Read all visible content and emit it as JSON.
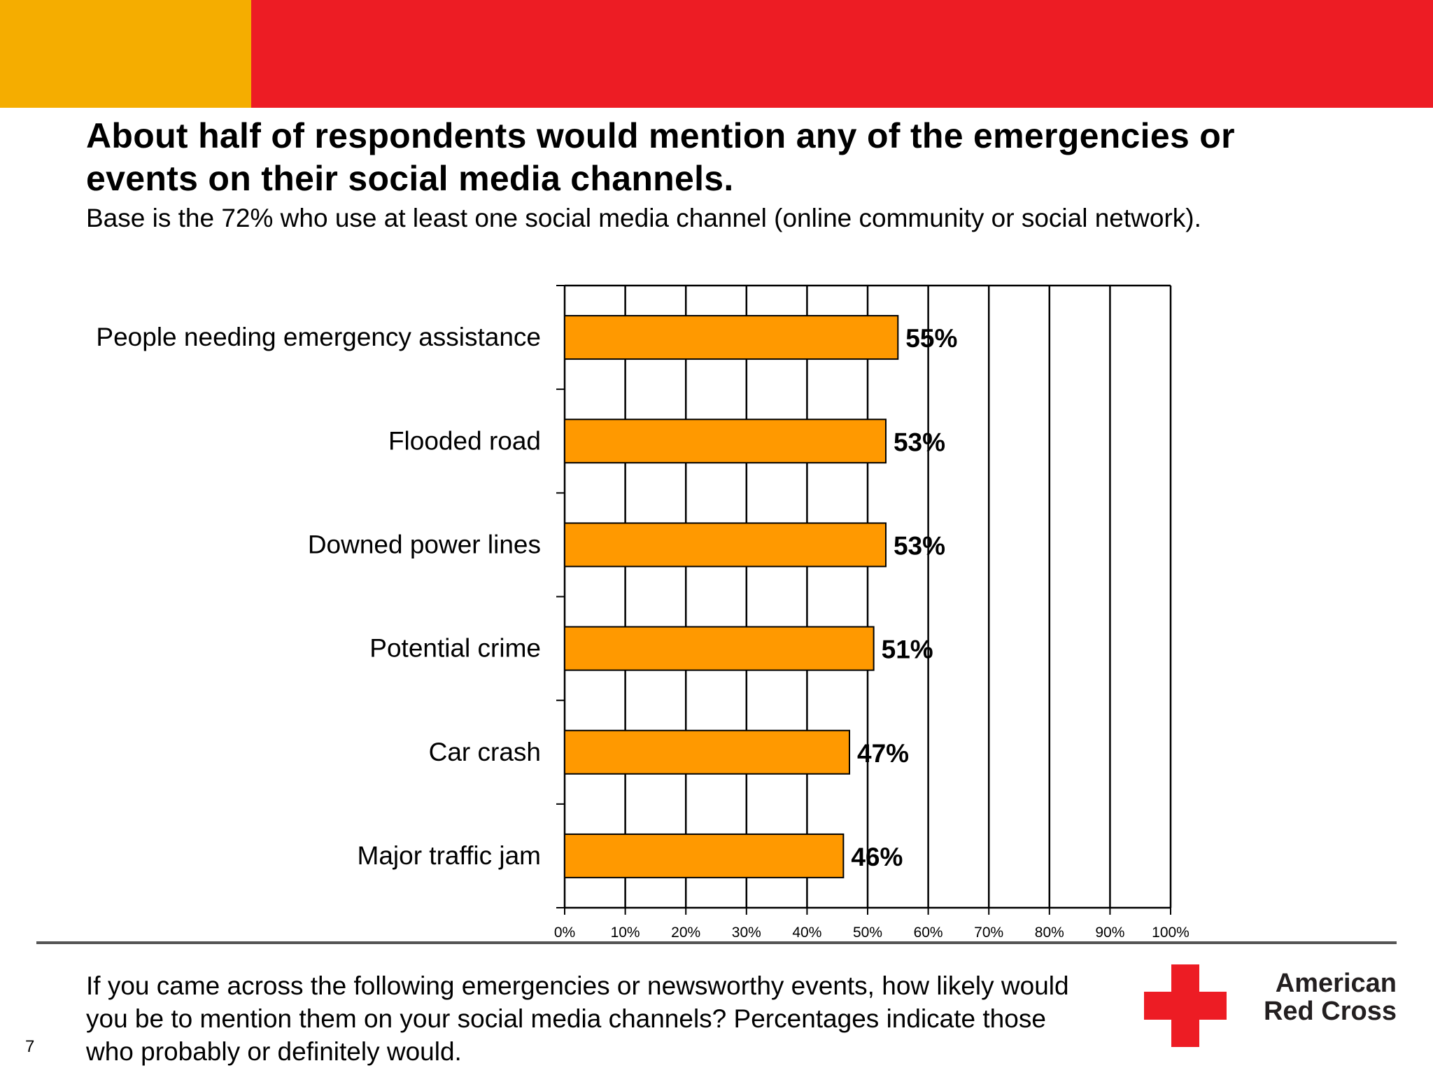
{
  "header": {
    "title": "About half of respondents would mention any of the emergencies or events on their social media channels.",
    "subtitle": "Base is the 72% who use at least one social media channel (online community or social network).",
    "band_colors": {
      "left": "#f5ad00",
      "right": "#ed1c24"
    }
  },
  "chart_data": {
    "type": "bar",
    "orientation": "horizontal",
    "categories": [
      "People needing emergency assistance",
      "Flooded road",
      "Downed power lines",
      "Potential crime",
      "Car crash",
      "Major traffic jam"
    ],
    "values": [
      55,
      53,
      53,
      51,
      47,
      46
    ],
    "data_labels": [
      "55%",
      "53%",
      "53%",
      "51%",
      "47%",
      "46%"
    ],
    "x_ticks": [
      "0%",
      "10%",
      "20%",
      "30%",
      "40%",
      "50%",
      "60%",
      "70%",
      "80%",
      "90%",
      "100%"
    ],
    "xlim": [
      0,
      100
    ],
    "grid": true,
    "bar_color": "#ff9900",
    "title": "",
    "xlabel": "",
    "ylabel": ""
  },
  "footer": {
    "question": "If you came across the following emergencies or newsworthy events, how likely would you be to mention them on your social media channels? Percentages indicate those who probably or definitely would.",
    "page_number": "7",
    "logo": {
      "line1": "American",
      "line2": "Red Cross",
      "cross_color": "#ed1c24"
    }
  }
}
